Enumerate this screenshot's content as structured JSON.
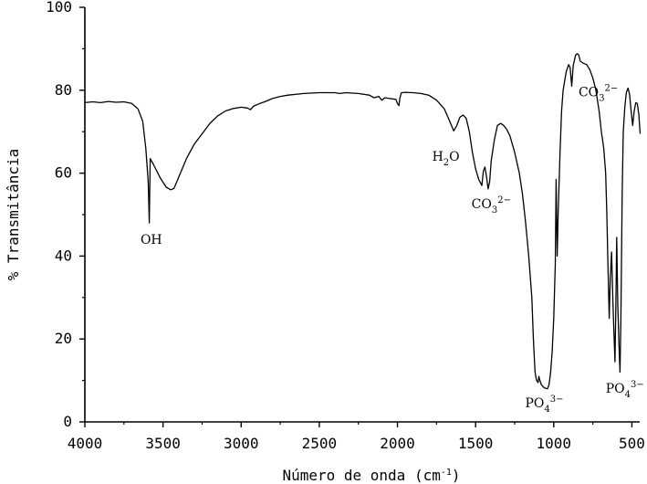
{
  "chart_data": {
    "type": "line",
    "xlabel": "Número de onda (cm",
    "xlabel_sup": "-1",
    "xlabel_tail": ")",
    "ylabel": "% Transmitância",
    "xlim": [
      4000,
      450
    ],
    "ylim": [
      0,
      100
    ],
    "x_reversed": true,
    "x_ticks": [
      4000,
      3500,
      3000,
      2500,
      2000,
      1500,
      1000,
      500
    ],
    "y_ticks": [
      0,
      20,
      40,
      60,
      80,
      100
    ],
    "grid": false,
    "series": [
      {
        "points": [
          [
            4000,
            77
          ],
          [
            3950,
            77.2
          ],
          [
            3900,
            77.0
          ],
          [
            3850,
            77.3
          ],
          [
            3800,
            77.1
          ],
          [
            3750,
            77.2
          ],
          [
            3700,
            76.8
          ],
          [
            3660,
            75.5
          ],
          [
            3630,
            72.5
          ],
          [
            3610,
            66
          ],
          [
            3595,
            58
          ],
          [
            3588,
            48
          ],
          [
            3582,
            63.5
          ],
          [
            3560,
            62
          ],
          [
            3520,
            59
          ],
          [
            3480,
            56.6
          ],
          [
            3450,
            56
          ],
          [
            3430,
            56.3
          ],
          [
            3400,
            59
          ],
          [
            3350,
            63.5
          ],
          [
            3300,
            67
          ],
          [
            3250,
            69.5
          ],
          [
            3200,
            72
          ],
          [
            3150,
            73.8
          ],
          [
            3100,
            75
          ],
          [
            3050,
            75.6
          ],
          [
            3000,
            75.9
          ],
          [
            2960,
            75.7
          ],
          [
            2940,
            75.3
          ],
          [
            2920,
            76.2
          ],
          [
            2880,
            76.8
          ],
          [
            2850,
            77.2
          ],
          [
            2800,
            78
          ],
          [
            2750,
            78.5
          ],
          [
            2700,
            78.8
          ],
          [
            2600,
            79.2
          ],
          [
            2500,
            79.4
          ],
          [
            2400,
            79.4
          ],
          [
            2370,
            79.2
          ],
          [
            2330,
            79.4
          ],
          [
            2250,
            79.2
          ],
          [
            2180,
            78.8
          ],
          [
            2150,
            78.2
          ],
          [
            2120,
            78.5
          ],
          [
            2100,
            77.6
          ],
          [
            2080,
            78.2
          ],
          [
            2050,
            78
          ],
          [
            2010,
            77.8
          ],
          [
            2000,
            76.8
          ],
          [
            1990,
            76.3
          ],
          [
            1985,
            78
          ],
          [
            1975,
            79.4
          ],
          [
            1950,
            79.5
          ],
          [
            1900,
            79.4
          ],
          [
            1850,
            79.2
          ],
          [
            1800,
            78.8
          ],
          [
            1750,
            77.6
          ],
          [
            1700,
            75.5
          ],
          [
            1660,
            72
          ],
          [
            1640,
            70.2
          ],
          [
            1620,
            71.5
          ],
          [
            1600,
            73.5
          ],
          [
            1580,
            74
          ],
          [
            1560,
            73.2
          ],
          [
            1540,
            70
          ],
          [
            1520,
            65
          ],
          [
            1500,
            61
          ],
          [
            1480,
            58.5
          ],
          [
            1460,
            57
          ],
          [
            1450,
            60.5
          ],
          [
            1440,
            61.5
          ],
          [
            1430,
            59
          ],
          [
            1420,
            56.2
          ],
          [
            1410,
            58
          ],
          [
            1400,
            63
          ],
          [
            1380,
            68
          ],
          [
            1360,
            71.5
          ],
          [
            1340,
            72
          ],
          [
            1320,
            71.5
          ],
          [
            1300,
            70.5
          ],
          [
            1280,
            69
          ],
          [
            1250,
            65
          ],
          [
            1220,
            60
          ],
          [
            1200,
            55
          ],
          [
            1180,
            48
          ],
          [
            1160,
            40
          ],
          [
            1140,
            30
          ],
          [
            1130,
            20
          ],
          [
            1120,
            12
          ],
          [
            1110,
            10
          ],
          [
            1100,
            9.5
          ],
          [
            1095,
            11
          ],
          [
            1090,
            10.2
          ],
          [
            1080,
            9
          ],
          [
            1060,
            8.2
          ],
          [
            1040,
            8
          ],
          [
            1030,
            9
          ],
          [
            1020,
            12
          ],
          [
            1010,
            17
          ],
          [
            1000,
            25
          ],
          [
            990,
            38
          ],
          [
            985,
            58.5
          ],
          [
            978,
            40
          ],
          [
            972,
            50
          ],
          [
            960,
            65
          ],
          [
            950,
            75
          ],
          [
            940,
            80
          ],
          [
            920,
            84.5
          ],
          [
            905,
            86.2
          ],
          [
            895,
            85.4
          ],
          [
            885,
            81
          ],
          [
            875,
            86
          ],
          [
            860,
            88.5
          ],
          [
            850,
            88.8
          ],
          [
            840,
            88.5
          ],
          [
            830,
            87
          ],
          [
            810,
            86.5
          ],
          [
            790,
            86.2
          ],
          [
            770,
            85
          ],
          [
            750,
            83
          ],
          [
            730,
            80
          ],
          [
            710,
            75
          ],
          [
            695,
            70
          ],
          [
            680,
            66
          ],
          [
            668,
            60
          ],
          [
            660,
            50
          ],
          [
            652,
            36
          ],
          [
            645,
            25
          ],
          [
            638,
            35
          ],
          [
            630,
            41
          ],
          [
            622,
            30
          ],
          [
            615,
            22
          ],
          [
            608,
            14.5
          ],
          [
            602,
            30
          ],
          [
            597,
            44.5
          ],
          [
            590,
            28
          ],
          [
            582,
            18
          ],
          [
            576,
            12
          ],
          [
            570,
            25
          ],
          [
            562,
            55
          ],
          [
            555,
            70
          ],
          [
            545,
            76
          ],
          [
            535,
            79.5
          ],
          [
            525,
            80.5
          ],
          [
            515,
            79
          ],
          [
            505,
            75
          ],
          [
            495,
            71.5
          ],
          [
            485,
            75
          ],
          [
            475,
            77
          ],
          [
            465,
            76.8
          ],
          [
            455,
            74
          ],
          [
            450,
            71
          ],
          [
            447,
            69.5
          ]
        ]
      }
    ],
    "annotations": [
      {
        "id": "oh",
        "parts": [
          {
            "t": "OH"
          }
        ],
        "x": 3575,
        "y": 43
      },
      {
        "id": "h2o",
        "parts": [
          {
            "t": "H"
          },
          {
            "t": "2",
            "sub": true
          },
          {
            "t": "O"
          }
        ],
        "x": 1690,
        "y": 63
      },
      {
        "id": "co3-1",
        "parts": [
          {
            "t": "CO"
          },
          {
            "t": "3",
            "sub": true
          },
          {
            "t": "2−",
            "sup": true
          }
        ],
        "x": 1400,
        "y": 51.5
      },
      {
        "id": "po4-1",
        "parts": [
          {
            "t": "PO"
          },
          {
            "t": "4",
            "sub": true
          },
          {
            "t": "3−",
            "sup": true
          }
        ],
        "x": 1060,
        "y": 3.5
      },
      {
        "id": "co3-2",
        "parts": [
          {
            "t": "CO"
          },
          {
            "t": "3",
            "sub": true
          },
          {
            "t": "2−",
            "sup": true
          }
        ],
        "x": 715,
        "y": 78.5
      },
      {
        "id": "po4-2",
        "parts": [
          {
            "t": "PO"
          },
          {
            "t": "4",
            "sub": true
          },
          {
            "t": "3−",
            "sup": true
          }
        ],
        "x": 545,
        "y": 7
      }
    ]
  }
}
